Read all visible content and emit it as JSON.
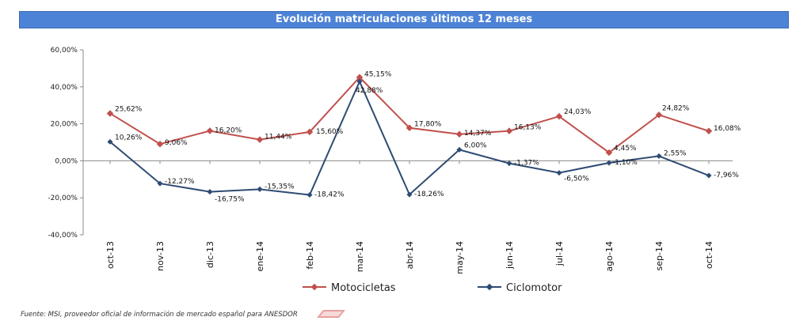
{
  "header": {
    "title": "Evolución matriculaciones últimos 12 meses"
  },
  "footer": {
    "source": "Fuente: MSI,  proveedor oficial de información de mercado español para ANESDOR"
  },
  "colors": {
    "motocicletas": "#c0504d",
    "ciclomotor": "#2e4b73",
    "title_bg": "#4d83d6"
  },
  "chart_data": {
    "type": "line",
    "title": "Evolución matriculaciones últimos 12 meses",
    "categories": [
      "oct-13",
      "nov-13",
      "dic-13",
      "ene-14",
      "feb-14",
      "mar-14",
      "abr-14",
      "may-14",
      "jun-14",
      "jul-14",
      "ago-14",
      "sep-14",
      "oct-14"
    ],
    "ylim": [
      -40,
      60
    ],
    "yticks": [
      "60,00%",
      "40,00%",
      "20,00%",
      "0,00%",
      "-20,00%",
      "-40,00%"
    ],
    "ytick_values": [
      60,
      40,
      20,
      0,
      -20,
      -40
    ],
    "legend_position": "bottom",
    "grid": false,
    "series": [
      {
        "name": "Motocicletas",
        "values": [
          25.62,
          9.06,
          16.2,
          11.44,
          15.6,
          45.15,
          17.8,
          14.37,
          16.13,
          24.03,
          4.45,
          24.82,
          16.08
        ],
        "labels": [
          "25,62%",
          "9,06%",
          "16,20%",
          "11,44%",
          "15,60%",
          "45,15%",
          "17,80%",
          "14,37%",
          "16,13%",
          "24,03%",
          "4,45%",
          "24,82%",
          "16,08%"
        ]
      },
      {
        "name": "Ciclomotor",
        "values": [
          10.26,
          -12.27,
          -16.75,
          -15.35,
          -18.42,
          42.88,
          -18.26,
          6.0,
          -1.37,
          -6.5,
          -1.1,
          2.55,
          -7.96
        ],
        "labels": [
          "10,26%",
          "-12,27%",
          "-16,75%",
          "-15,35%",
          "-18,42%",
          "42,88%",
          "-18,26%",
          "6,00%",
          "-1,37%",
          "-6,50%",
          "-1,10%",
          "2,55%",
          "-7,96%"
        ]
      }
    ]
  }
}
